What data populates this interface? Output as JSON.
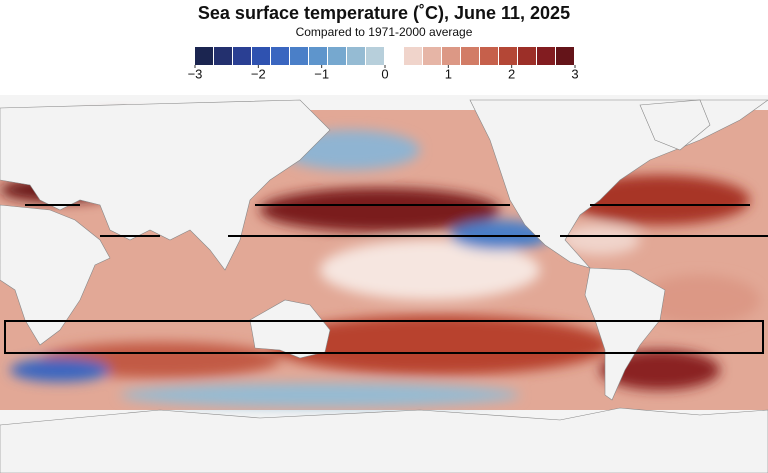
{
  "title": "Sea surface temperature (˚C), June 11, 2025",
  "subtitle": "Compared to 1971-2000 average",
  "legend": {
    "range": [
      -3,
      3
    ],
    "colors": [
      "#1b2550",
      "#23306e",
      "#2a3f93",
      "#2f52b0",
      "#3a66c0",
      "#4a7fc8",
      "#5e95cc",
      "#76a8cf",
      "#95bbd3",
      "#b7cfdb",
      "#ffffff",
      "#f0d4cb",
      "#e6b5a6",
      "#dc9885",
      "#d27c66",
      "#c6604b",
      "#b44736",
      "#9c2f28",
      "#821c20",
      "#641419"
    ],
    "ticks": [
      {
        "value": -3,
        "label": "−3"
      },
      {
        "value": -2,
        "label": "−2"
      },
      {
        "value": -1,
        "label": "−1"
      },
      0,
      1,
      2,
      3
    ]
  }
}
